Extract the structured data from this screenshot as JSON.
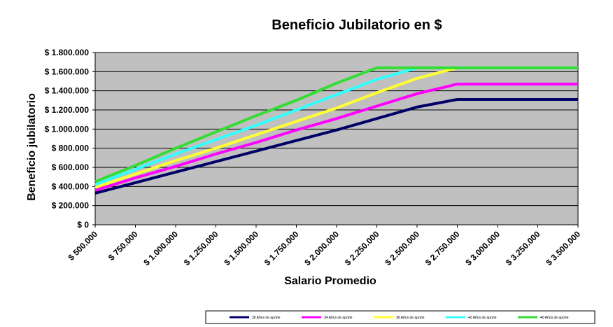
{
  "chart_data": {
    "type": "line",
    "title": "Beneficio Jubilatorio en $",
    "xlabel": "Salario Promedio",
    "ylabel": "Beneficio jubilatorio",
    "x": [
      500000,
      750000,
      1000000,
      1250000,
      1500000,
      1750000,
      2000000,
      2250000,
      2500000,
      2750000,
      3000000,
      3250000,
      3500000
    ],
    "x_tick_labels": [
      "$ 500.000",
      "$ 750.000",
      "$ 1.000.000",
      "$ 1.250.000",
      "$ 1.500.000",
      "$ 1.750.000",
      "$ 2.000.000",
      "$ 2.250.000",
      "$ 2.500.000",
      "$ 2.750.000",
      "$ 3.000.000",
      "$ 3.250.000",
      "$ 3.500.000"
    ],
    "y_ticks": [
      0,
      200000,
      400000,
      600000,
      800000,
      1000000,
      1200000,
      1400000,
      1600000,
      1800000
    ],
    "y_tick_labels": [
      "$ 0",
      "$ 200.000",
      "$ 400.000",
      "$ 600.000",
      "$ 800.000",
      "$ 1.000.000",
      "$ 1.200.000",
      "$ 1.400.000",
      "$ 1.600.000",
      "$ 1.800.000"
    ],
    "ylim": [
      0,
      1800000
    ],
    "xlim": [
      500000,
      3500000
    ],
    "grid": "horizontal",
    "plot_background": "#c0c0c0",
    "legend_position": "bottom",
    "series": [
      {
        "name": "30 Años de aporte",
        "color": "#000066",
        "values": [
          330000,
          440000,
          550000,
          660000,
          770000,
          880000,
          990000,
          1110000,
          1230000,
          1310000,
          1310000,
          1310000,
          1310000
        ]
      },
      {
        "name": "34 Años de aporte",
        "color": "#ff00ff",
        "values": [
          360000,
          490000,
          610000,
          740000,
          860000,
          990000,
          1110000,
          1240000,
          1370000,
          1470000,
          1470000,
          1470000,
          1470000
        ]
      },
      {
        "name": "36 Años de aporte",
        "color": "#ffff33",
        "values": [
          390000,
          530000,
          670000,
          800000,
          940000,
          1080000,
          1220000,
          1380000,
          1530000,
          1640000,
          1640000,
          1640000,
          1640000
        ]
      },
      {
        "name": "42 Años de aporte",
        "color": "#33ffff",
        "values": [
          420000,
          580000,
          740000,
          890000,
          1040000,
          1200000,
          1360000,
          1520000,
          1640000,
          1640000,
          1640000,
          1640000,
          1640000
        ]
      },
      {
        "name": "40 Años de aporte",
        "color": "#33dd33",
        "values": [
          450000,
          620000,
          800000,
          970000,
          1140000,
          1300000,
          1480000,
          1640000,
          1640000,
          1640000,
          1640000,
          1640000,
          1640000
        ]
      }
    ]
  }
}
